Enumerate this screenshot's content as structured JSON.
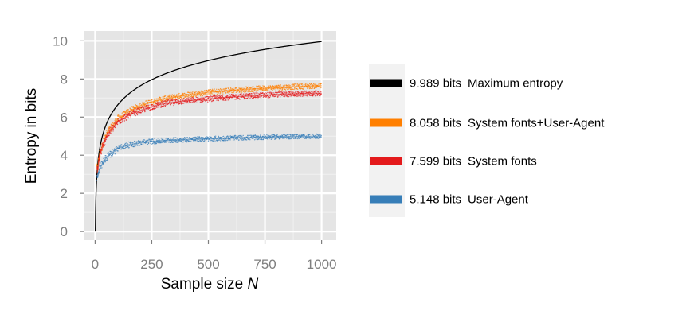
{
  "chart_data": {
    "type": "scatter",
    "xlabel": "Sample size",
    "xlabel_var": "N",
    "ylabel": "Entropy in bits",
    "xlim": [
      0,
      1010
    ],
    "ylim": [
      0,
      10.5
    ],
    "x_ticks": [
      0,
      250,
      500,
      750,
      1000
    ],
    "x_tick_labels": [
      "0",
      "250",
      "500",
      "750",
      "1000"
    ],
    "y_ticks": [
      0,
      2,
      4,
      6,
      8,
      10
    ],
    "y_tick_labels": [
      "0",
      "2",
      "4",
      "6",
      "8",
      "10"
    ],
    "grid": true,
    "legend_position": "right",
    "series": [
      {
        "name": "Maximum entropy",
        "legend_value": "9.989 bits",
        "color": "#000000",
        "style": "line",
        "x": [
          1,
          2,
          5,
          10,
          20,
          50,
          100,
          150,
          200,
          250,
          300,
          400,
          500,
          600,
          700,
          800,
          900,
          1000
        ],
        "y": [
          0,
          1,
          2.32,
          3.32,
          4.32,
          5.64,
          6.64,
          7.23,
          7.64,
          7.97,
          8.23,
          8.64,
          8.97,
          9.23,
          9.45,
          9.64,
          9.81,
          9.97
        ]
      },
      {
        "name": "System fonts+User-Agent",
        "legend_value": "8.058 bits",
        "color": "#ff7f00",
        "style": "points",
        "x": [
          10,
          20,
          50,
          100,
          150,
          200,
          250,
          300,
          400,
          500,
          600,
          700,
          800,
          900,
          1000
        ],
        "y": [
          3.2,
          4.1,
          5.1,
          5.9,
          6.3,
          6.6,
          6.8,
          6.95,
          7.15,
          7.3,
          7.4,
          7.48,
          7.55,
          7.6,
          7.65
        ]
      },
      {
        "name": "System fonts",
        "legend_value": "7.599 bits",
        "color": "#e41a1c",
        "style": "points",
        "x": [
          10,
          20,
          50,
          100,
          150,
          200,
          250,
          300,
          400,
          500,
          600,
          700,
          800,
          900,
          1000
        ],
        "y": [
          3.1,
          4.0,
          5.0,
          5.75,
          6.1,
          6.35,
          6.55,
          6.7,
          6.85,
          6.95,
          7.05,
          7.12,
          7.18,
          7.22,
          7.25
        ]
      },
      {
        "name": "User-Agent",
        "legend_value": "5.148 bits",
        "color": "#377eb8",
        "style": "points",
        "x": [
          10,
          20,
          50,
          100,
          150,
          200,
          250,
          300,
          400,
          500,
          600,
          700,
          800,
          900,
          1000
        ],
        "y": [
          2.8,
          3.3,
          3.9,
          4.35,
          4.55,
          4.65,
          4.72,
          4.77,
          4.82,
          4.86,
          4.9,
          4.93,
          4.96,
          4.98,
          5.0
        ]
      }
    ]
  }
}
